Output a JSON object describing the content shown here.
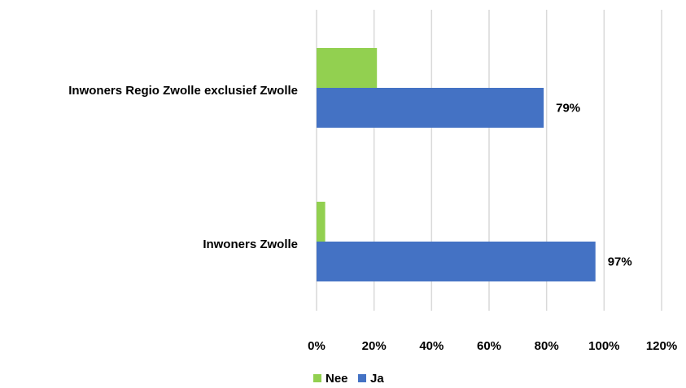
{
  "chart_data": {
    "type": "bar",
    "orientation": "horizontal",
    "categories": [
      "Inwoners Regio Zwolle exclusief Zwolle",
      "Inwoners Zwolle"
    ],
    "series": [
      {
        "name": "Nee",
        "color": "#92d050",
        "values": [
          21,
          3
        ],
        "labels": [
          "",
          ""
        ]
      },
      {
        "name": "Ja",
        "color": "#4472c4",
        "values": [
          79,
          97
        ],
        "labels": [
          "79%",
          "97%"
        ]
      }
    ],
    "xlim": [
      0,
      120
    ],
    "xticks": [
      "0%",
      "20%",
      "40%",
      "60%",
      "80%",
      "100%",
      "120%"
    ],
    "grid": true,
    "legend_position": "bottom"
  }
}
